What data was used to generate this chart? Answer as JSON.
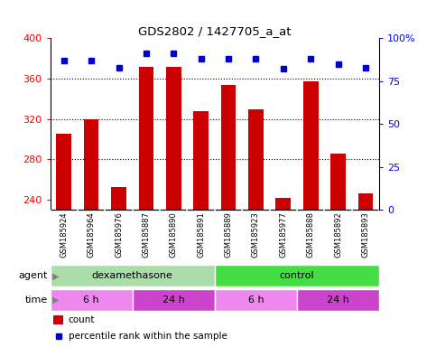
{
  "title": "GDS2802 / 1427705_a_at",
  "samples": [
    "GSM185924",
    "GSM185964",
    "GSM185976",
    "GSM185887",
    "GSM185890",
    "GSM185891",
    "GSM185889",
    "GSM185923",
    "GSM185977",
    "GSM185888",
    "GSM185892",
    "GSM185893"
  ],
  "counts": [
    305,
    320,
    253,
    372,
    372,
    328,
    354,
    330,
    242,
    357,
    286,
    246
  ],
  "percentiles": [
    87,
    87,
    83,
    91,
    91,
    88,
    88,
    88,
    82,
    88,
    85,
    83
  ],
  "ylim_left": [
    230,
    400
  ],
  "ylim_right": [
    0,
    100
  ],
  "yticks_left": [
    240,
    280,
    320,
    360,
    400
  ],
  "yticks_right": [
    0,
    25,
    50,
    75,
    100
  ],
  "bar_color": "#cc0000",
  "dot_color": "#0000cc",
  "agent_groups": [
    {
      "label": "dexamethasone",
      "start": 0,
      "end": 5,
      "color": "#aaddaa"
    },
    {
      "label": "control",
      "start": 6,
      "end": 11,
      "color": "#44dd44"
    }
  ],
  "time_groups": [
    {
      "label": "6 h",
      "start": 0,
      "end": 2,
      "color": "#ee88ee"
    },
    {
      "label": "24 h",
      "start": 3,
      "end": 5,
      "color": "#cc44cc"
    },
    {
      "label": "6 h",
      "start": 6,
      "end": 8,
      "color": "#ee88ee"
    },
    {
      "label": "24 h",
      "start": 9,
      "end": 11,
      "color": "#cc44cc"
    }
  ],
  "bg_color": "#ffffff",
  "sample_area_color": "#c8c8c8",
  "legend_items": [
    {
      "label": "count",
      "color": "#cc0000"
    },
    {
      "label": "percentile rank within the sample",
      "color": "#0000cc"
    }
  ],
  "grid_yticks": [
    280,
    320,
    360
  ]
}
